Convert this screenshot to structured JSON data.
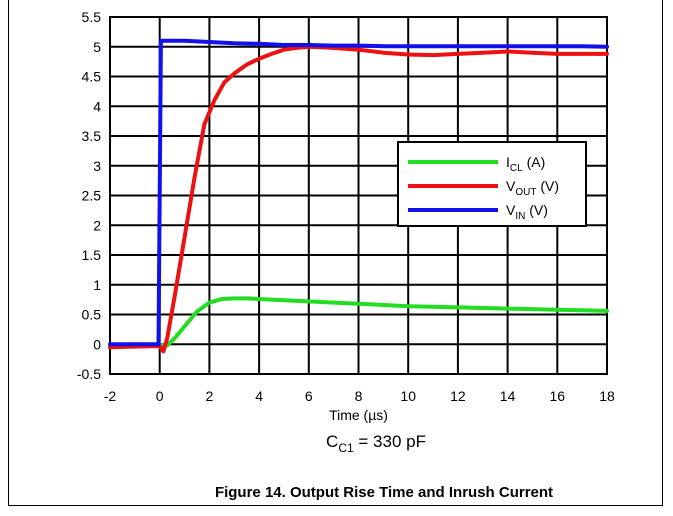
{
  "chart_data": {
    "type": "line",
    "xlabel": "Time (µs)",
    "ylabel": "",
    "xlim": [
      -2,
      18
    ],
    "ylim": [
      -0.5,
      5.5
    ],
    "xticks": [
      -2,
      0,
      2,
      4,
      6,
      8,
      10,
      12,
      14,
      16,
      18
    ],
    "yticks": [
      -0.5,
      0,
      0.5,
      1,
      1.5,
      2,
      2.5,
      3,
      3.5,
      4,
      4.5,
      5,
      5.5
    ],
    "grid": true,
    "legend_position": "right",
    "series": [
      {
        "name_main": "I",
        "name_sub": "CL",
        "name_unit": " (A)",
        "color": "#22dd22",
        "x": [
          -2,
          -0.5,
          0,
          0.3,
          0.6,
          1.0,
          1.5,
          2.0,
          2.5,
          3.0,
          3.5,
          4,
          5,
          6,
          7,
          8,
          9,
          10,
          11,
          12,
          13,
          14,
          15,
          16,
          17,
          18
        ],
        "y": [
          -0.02,
          -0.02,
          -0.02,
          -0.02,
          0.1,
          0.3,
          0.55,
          0.7,
          0.76,
          0.77,
          0.77,
          0.76,
          0.74,
          0.72,
          0.7,
          0.68,
          0.66,
          0.64,
          0.63,
          0.62,
          0.61,
          0.6,
          0.59,
          0.58,
          0.57,
          0.56
        ]
      },
      {
        "name_main": "V",
        "name_sub": "OUT",
        "name_unit": " (V)",
        "color": "#ee1111",
        "x": [
          -2,
          -1,
          0,
          0.15,
          0.3,
          0.6,
          1.0,
          1.4,
          1.8,
          2.2,
          2.6,
          3.0,
          3.5,
          4,
          4.5,
          5,
          5.5,
          6,
          7,
          8,
          9,
          10,
          11,
          12,
          13,
          14,
          15,
          16,
          17,
          18
        ],
        "y": [
          -0.05,
          -0.04,
          -0.03,
          -0.12,
          0.1,
          0.8,
          1.8,
          2.8,
          3.7,
          4.1,
          4.4,
          4.55,
          4.7,
          4.8,
          4.88,
          4.95,
          4.98,
          5.0,
          4.98,
          4.95,
          4.9,
          4.87,
          4.86,
          4.88,
          4.9,
          4.92,
          4.9,
          4.88,
          4.88,
          4.88
        ]
      },
      {
        "name_main": "V",
        "name_sub": "IN",
        "name_unit": " (V)",
        "color": "#1111ee",
        "x": [
          -2,
          -1,
          -0.05,
          0,
          0.05,
          0.5,
          1,
          2,
          3,
          4,
          5,
          6,
          7,
          8,
          9,
          10,
          11,
          12,
          13,
          14,
          15,
          16,
          17,
          18
        ],
        "y": [
          0.0,
          0.0,
          0.0,
          2.5,
          5.1,
          5.1,
          5.1,
          5.08,
          5.06,
          5.05,
          5.03,
          5.03,
          5.02,
          5.02,
          5.01,
          5.01,
          5.01,
          5.01,
          5.01,
          5.01,
          5.01,
          5.01,
          5.01,
          5.0
        ]
      }
    ]
  },
  "condition": {
    "main": "C",
    "sub": "C1",
    "rest": " = 330 pF"
  },
  "caption": "Figure 14. Output Rise Time and Inrush Current"
}
